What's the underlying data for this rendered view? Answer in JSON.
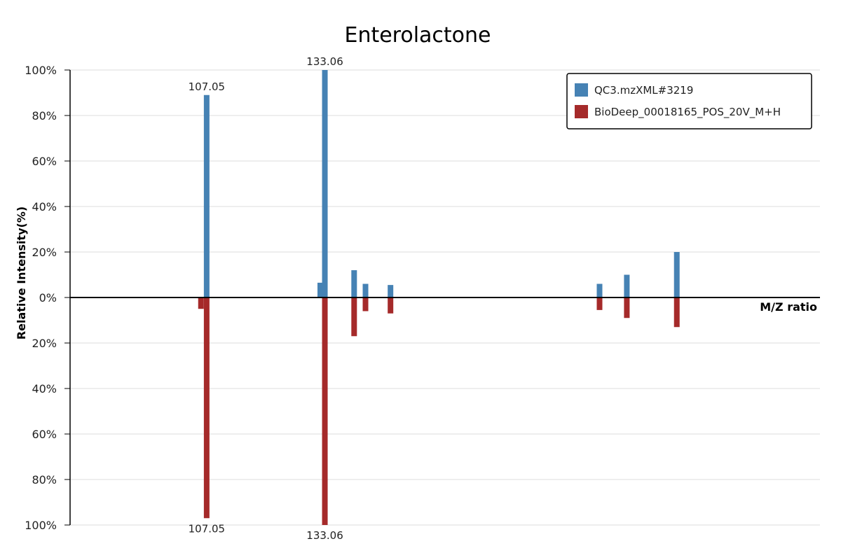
{
  "chart_data": {
    "type": "bar",
    "subtype": "mirrored mass spectrum",
    "title": "Enterolactone",
    "xlabel": "M/Z ratio",
    "ylabel": "Relative Intensity(%)",
    "ylim": [
      -100,
      100
    ],
    "y_ticks": [
      "100%",
      "80%",
      "60%",
      "40%",
      "20%",
      "0%",
      "20%",
      "40%",
      "60%",
      "80%",
      "100%"
    ],
    "grid": true,
    "legend_position": "top-right",
    "x_range": [
      77,
      242
    ],
    "series": [
      {
        "name": "QC3.mzXML#3219",
        "color": "#4682b4",
        "direction": "up",
        "peaks": [
          {
            "mz": 107.05,
            "intensity": 89,
            "label": "107.05"
          },
          {
            "mz": 132.05,
            "intensity": 6.5
          },
          {
            "mz": 133.06,
            "intensity": 100,
            "label": "133.06"
          },
          {
            "mz": 139.5,
            "intensity": 12
          },
          {
            "mz": 142.0,
            "intensity": 6
          },
          {
            "mz": 147.5,
            "intensity": 5.5
          },
          {
            "mz": 193.5,
            "intensity": 6
          },
          {
            "mz": 199.5,
            "intensity": 10
          },
          {
            "mz": 210.5,
            "intensity": 20
          }
        ]
      },
      {
        "name": "BioDeep_00018165_POS_20V_M+H",
        "color": "#a52a2a",
        "direction": "down",
        "peaks": [
          {
            "mz": 105.8,
            "intensity": 5
          },
          {
            "mz": 107.05,
            "intensity": 97,
            "label": "107.05"
          },
          {
            "mz": 133.06,
            "intensity": 100,
            "label": "133.06"
          },
          {
            "mz": 139.5,
            "intensity": 17
          },
          {
            "mz": 142.0,
            "intensity": 6
          },
          {
            "mz": 147.5,
            "intensity": 7
          },
          {
            "mz": 193.5,
            "intensity": 5.5
          },
          {
            "mz": 199.5,
            "intensity": 9
          },
          {
            "mz": 210.5,
            "intensity": 13
          }
        ]
      }
    ]
  }
}
